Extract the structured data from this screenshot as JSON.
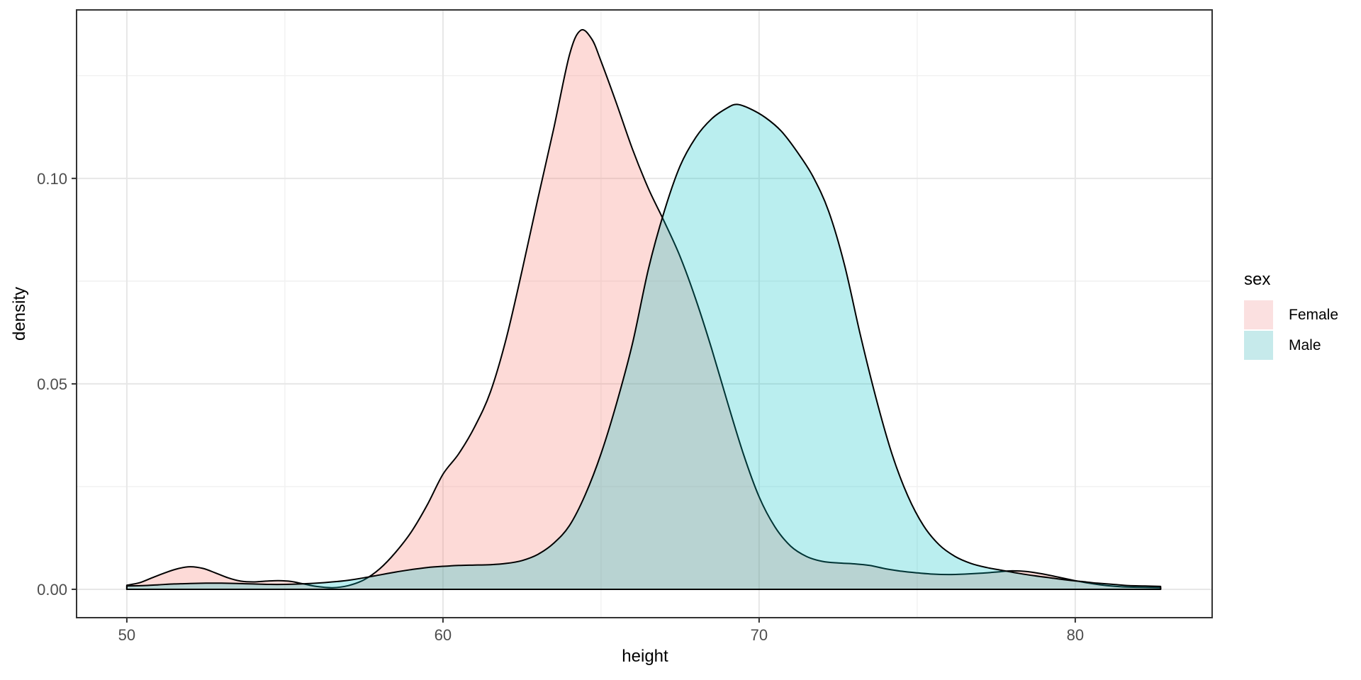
{
  "chart_data": {
    "type": "area",
    "subtype": "density",
    "title": "",
    "xlabel": "height",
    "ylabel": "density",
    "grid": "major and minor gridlines, light grey on white panel, dark panel border",
    "x_axis": {
      "range": [
        48.41,
        84.33
      ],
      "ticks": [
        50,
        60,
        70,
        80
      ],
      "tick_labels": [
        "50",
        "60",
        "70",
        "80"
      ],
      "minor_ticks": [
        55,
        65,
        75
      ]
    },
    "y_axis": {
      "range": [
        -0.0069,
        0.141
      ],
      "ticks": [
        0,
        0.05,
        0.1
      ],
      "tick_labels": [
        "0.00",
        "0.05",
        "0.10"
      ],
      "minor_ticks": [
        0.025,
        0.075,
        0.125
      ]
    },
    "legend": {
      "title": "sex",
      "position": "right",
      "entries": [
        {
          "label": "Female",
          "swatch_color": "#FBE0E0"
        },
        {
          "label": "Male",
          "swatch_color": "#C6EAEB"
        }
      ]
    },
    "series": [
      {
        "name": "Female",
        "outline_color": "#000000",
        "fill_color": "rgba(248,118,109,0.27)",
        "peak": {
          "x": 64.35,
          "y": 0.136
        },
        "points": [
          [
            50,
            0.001
          ],
          [
            50.4,
            0.0016
          ],
          [
            50.8,
            0.0028
          ],
          [
            51.2,
            0.004
          ],
          [
            51.6,
            0.005
          ],
          [
            52,
            0.0055
          ],
          [
            52.4,
            0.0051
          ],
          [
            52.8,
            0.004
          ],
          [
            53.2,
            0.0028
          ],
          [
            53.6,
            0.002
          ],
          [
            54,
            0.0018
          ],
          [
            54.4,
            0.002
          ],
          [
            54.8,
            0.0021
          ],
          [
            55.2,
            0.0019
          ],
          [
            55.6,
            0.0013
          ],
          [
            56,
            0.0007
          ],
          [
            56.5,
            0.0004
          ],
          [
            57,
            0.0009
          ],
          [
            57.5,
            0.0023
          ],
          [
            58,
            0.005
          ],
          [
            58.5,
            0.009
          ],
          [
            59,
            0.014
          ],
          [
            59.5,
            0.0205
          ],
          [
            60,
            0.028
          ],
          [
            60.5,
            0.033
          ],
          [
            61,
            0.0395
          ],
          [
            61.5,
            0.048
          ],
          [
            62,
            0.061
          ],
          [
            62.5,
            0.0775
          ],
          [
            63,
            0.095
          ],
          [
            63.5,
            0.112
          ],
          [
            64,
            0.13
          ],
          [
            64.35,
            0.136
          ],
          [
            64.7,
            0.134
          ],
          [
            65,
            0.1285
          ],
          [
            65.5,
            0.118
          ],
          [
            66,
            0.107
          ],
          [
            66.5,
            0.0975
          ],
          [
            67,
            0.0895
          ],
          [
            67.5,
            0.081
          ],
          [
            68,
            0.0705
          ],
          [
            68.5,
            0.0585
          ],
          [
            69,
            0.0455
          ],
          [
            69.5,
            0.033
          ],
          [
            70,
            0.0225
          ],
          [
            70.5,
            0.0152
          ],
          [
            71,
            0.0105
          ],
          [
            71.5,
            0.008
          ],
          [
            72,
            0.0068
          ],
          [
            72.5,
            0.0064
          ],
          [
            73,
            0.0062
          ],
          [
            73.5,
            0.0058
          ],
          [
            74,
            0.005
          ],
          [
            74.5,
            0.0044
          ],
          [
            75,
            0.004
          ],
          [
            75.5,
            0.0037
          ],
          [
            76,
            0.0036
          ],
          [
            76.5,
            0.0037
          ],
          [
            77,
            0.0039
          ],
          [
            77.5,
            0.0042
          ],
          [
            78,
            0.0045
          ],
          [
            78.5,
            0.0043
          ],
          [
            79,
            0.0037
          ],
          [
            79.5,
            0.0029
          ],
          [
            80,
            0.0021
          ],
          [
            80.5,
            0.0014
          ],
          [
            81,
            0.0009
          ],
          [
            81.5,
            0.0006
          ],
          [
            82,
            0.0005
          ],
          [
            82.7,
            0.0004
          ]
        ]
      },
      {
        "name": "Male",
        "outline_color": "#000000",
        "fill_color": "rgba(0,191,196,0.27)",
        "peak": {
          "x": 69.3,
          "y": 0.118
        },
        "points": [
          [
            50,
            0.0008
          ],
          [
            50.5,
            0.0009
          ],
          [
            51,
            0.0011
          ],
          [
            51.5,
            0.0013
          ],
          [
            52,
            0.0014
          ],
          [
            52.5,
            0.0015
          ],
          [
            53,
            0.0015
          ],
          [
            53.5,
            0.0014
          ],
          [
            54,
            0.0013
          ],
          [
            54.5,
            0.0012
          ],
          [
            55,
            0.0012
          ],
          [
            55.5,
            0.0013
          ],
          [
            56,
            0.0015
          ],
          [
            56.5,
            0.0018
          ],
          [
            57,
            0.0022
          ],
          [
            57.5,
            0.0028
          ],
          [
            58,
            0.0035
          ],
          [
            58.5,
            0.0042
          ],
          [
            59,
            0.0048
          ],
          [
            59.5,
            0.0053
          ],
          [
            60,
            0.0056
          ],
          [
            60.5,
            0.0058
          ],
          [
            61,
            0.0059
          ],
          [
            61.5,
            0.006
          ],
          [
            62,
            0.0063
          ],
          [
            62.5,
            0.007
          ],
          [
            63,
            0.0085
          ],
          [
            63.5,
            0.0112
          ],
          [
            64,
            0.0155
          ],
          [
            64.5,
            0.023
          ],
          [
            65,
            0.033
          ],
          [
            65.5,
            0.0455
          ],
          [
            66,
            0.06
          ],
          [
            66.5,
            0.078
          ],
          [
            67,
            0.092
          ],
          [
            67.5,
            0.103
          ],
          [
            68,
            0.11
          ],
          [
            68.5,
            0.1145
          ],
          [
            69,
            0.1172
          ],
          [
            69.3,
            0.118
          ],
          [
            69.7,
            0.117
          ],
          [
            70.2,
            0.1148
          ],
          [
            70.7,
            0.1115
          ],
          [
            71.2,
            0.1065
          ],
          [
            71.7,
            0.1005
          ],
          [
            72.2,
            0.092
          ],
          [
            72.7,
            0.079
          ],
          [
            73.2,
            0.062
          ],
          [
            73.7,
            0.0465
          ],
          [
            74.2,
            0.033
          ],
          [
            74.7,
            0.0228
          ],
          [
            75.2,
            0.0155
          ],
          [
            75.7,
            0.0108
          ],
          [
            76.2,
            0.008
          ],
          [
            76.7,
            0.0063
          ],
          [
            77.2,
            0.0053
          ],
          [
            77.7,
            0.0046
          ],
          [
            78.2,
            0.0039
          ],
          [
            78.7,
            0.0033
          ],
          [
            79.2,
            0.0028
          ],
          [
            79.7,
            0.0023
          ],
          [
            80.2,
            0.0019
          ],
          [
            80.7,
            0.0015
          ],
          [
            81.2,
            0.0012
          ],
          [
            81.7,
            0.0009
          ],
          [
            82.2,
            0.0008
          ],
          [
            82.7,
            0.0007
          ]
        ]
      }
    ]
  },
  "colors": {
    "background": "#FFFFFF",
    "panel_border": "#333333",
    "grid_major": "#E7E7E7",
    "grid_minor": "#F1F1F1",
    "tick_mark": "#333333",
    "tick_label": "#4D4D4D",
    "axis_title": "#000000",
    "curve_outline": "#000000"
  }
}
